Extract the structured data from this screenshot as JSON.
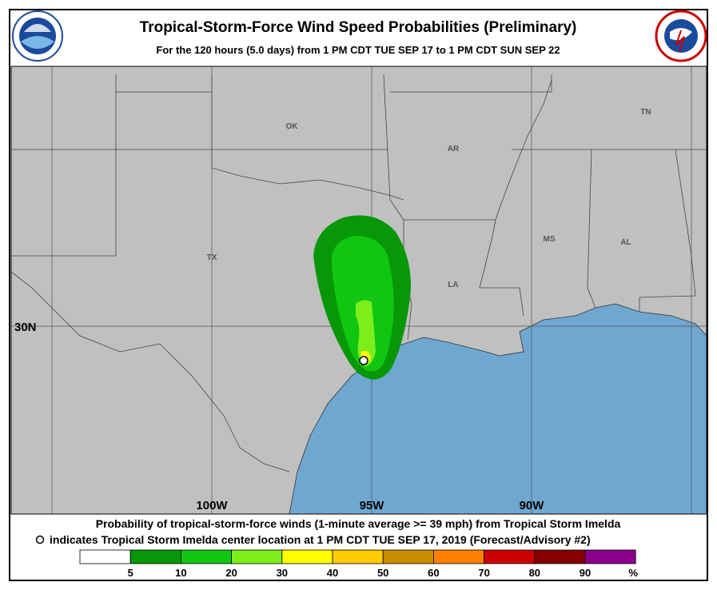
{
  "header": {
    "title": "Tropical-Storm-Force Wind Speed Probabilities (Preliminary)",
    "subtitle": "For the 120 hours (5.0 days) from 1 PM CDT TUE SEP 17 to 1 PM CDT SUN SEP 22"
  },
  "map": {
    "state_labels": [
      "OK",
      "AR",
      "TN",
      "TX",
      "LA",
      "MS",
      "AL"
    ],
    "lat_labels": [
      "30N"
    ],
    "lon_labels": [
      "100W",
      "95W",
      "90W"
    ]
  },
  "footer": {
    "line1": "Probability of tropical-storm-force winds (1-minute average >= 39 mph) from Tropical Storm Imelda",
    "line2": "indicates Tropical Storm Imelda center location at 1 PM CDT TUE SEP 17, 2019 (Forecast/Advisory #2)"
  },
  "legend": {
    "colors": [
      "#ffffff",
      "#079707",
      "#10c610",
      "#7cee1c",
      "#ffff00",
      "#ffcc00",
      "#cc8c00",
      "#ff8000",
      "#cc0000",
      "#880000",
      "#8a008a"
    ],
    "ticks": [
      5,
      10,
      20,
      30,
      40,
      50,
      60,
      70,
      80,
      90
    ],
    "unit": "%"
  }
}
